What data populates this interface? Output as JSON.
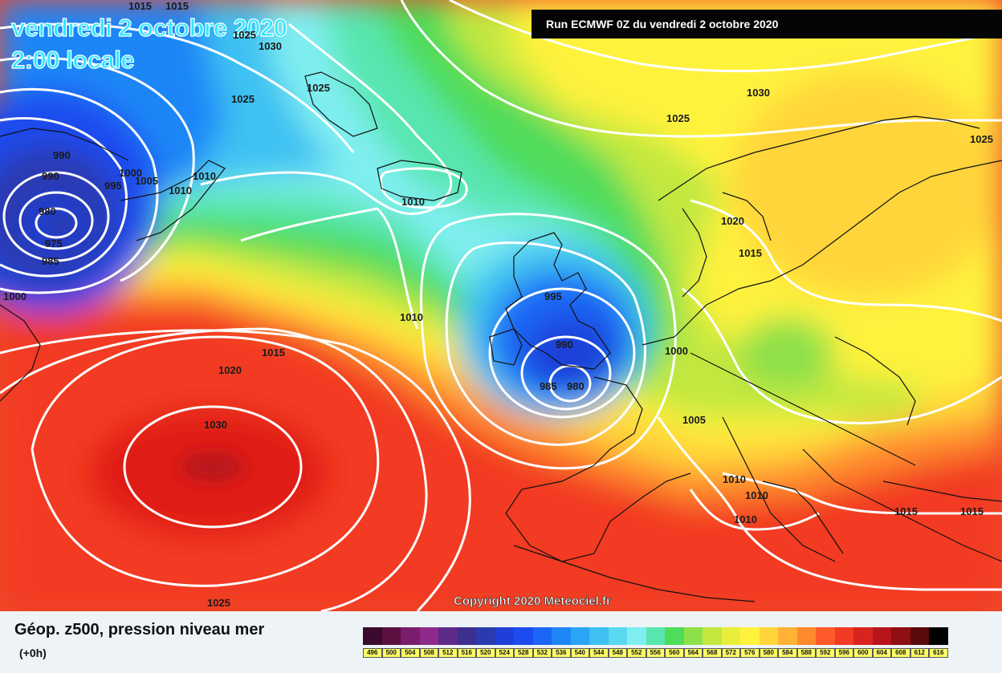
{
  "map": {
    "date_line": "vendredi 2 octobre 2020",
    "time_line": "2:00 locale",
    "run_banner": "Run ECMWF 0Z du vendredi 2 octobre 2020",
    "copyright": "Copyright 2020 Meteociel.fr",
    "pressure_labels": [
      "1015",
      "1015",
      "1025",
      "1030",
      "1025",
      "1025",
      "1030",
      "1025",
      "1025",
      "990",
      "990",
      "995",
      "1000",
      "1005",
      "1010",
      "1010",
      "980",
      "975",
      "985",
      "1000",
      "1010",
      "1010",
      "1020",
      "1015",
      "995",
      "990",
      "985",
      "980",
      "1000",
      "1015",
      "1020",
      "1005",
      "1030",
      "1010",
      "1010",
      "1010",
      "1015",
      "1015",
      "1025"
    ]
  },
  "legend": {
    "title": "Géop. z500, pression niveau mer",
    "subtitle": "(+0h)",
    "scale_values": [
      "496",
      "500",
      "504",
      "508",
      "512",
      "516",
      "520",
      "524",
      "528",
      "532",
      "536",
      "540",
      "544",
      "548",
      "552",
      "556",
      "560",
      "564",
      "568",
      "572",
      "576",
      "580",
      "584",
      "588",
      "592",
      "596",
      "600",
      "604",
      "608",
      "612",
      "616"
    ],
    "scale_colors": [
      "#3a0b2e",
      "#5b1040",
      "#7a1d6e",
      "#8e2a8c",
      "#5e2a8a",
      "#3d2f8e",
      "#2a3bb0",
      "#1f3fd8",
      "#1c4cf0",
      "#1c66f5",
      "#1f86f7",
      "#2aa4f5",
      "#3ec1f2",
      "#5ad8f0",
      "#7feef0",
      "#58e6b0",
      "#4fdc5a",
      "#8ee04a",
      "#c2e840",
      "#e9ee3a",
      "#fff23c",
      "#ffd53a",
      "#ffb233",
      "#ff8a2e",
      "#ff5a2a",
      "#f23a24",
      "#d8241e",
      "#b7151a",
      "#8f0f12",
      "#5a0a0a",
      "#000000"
    ]
  }
}
